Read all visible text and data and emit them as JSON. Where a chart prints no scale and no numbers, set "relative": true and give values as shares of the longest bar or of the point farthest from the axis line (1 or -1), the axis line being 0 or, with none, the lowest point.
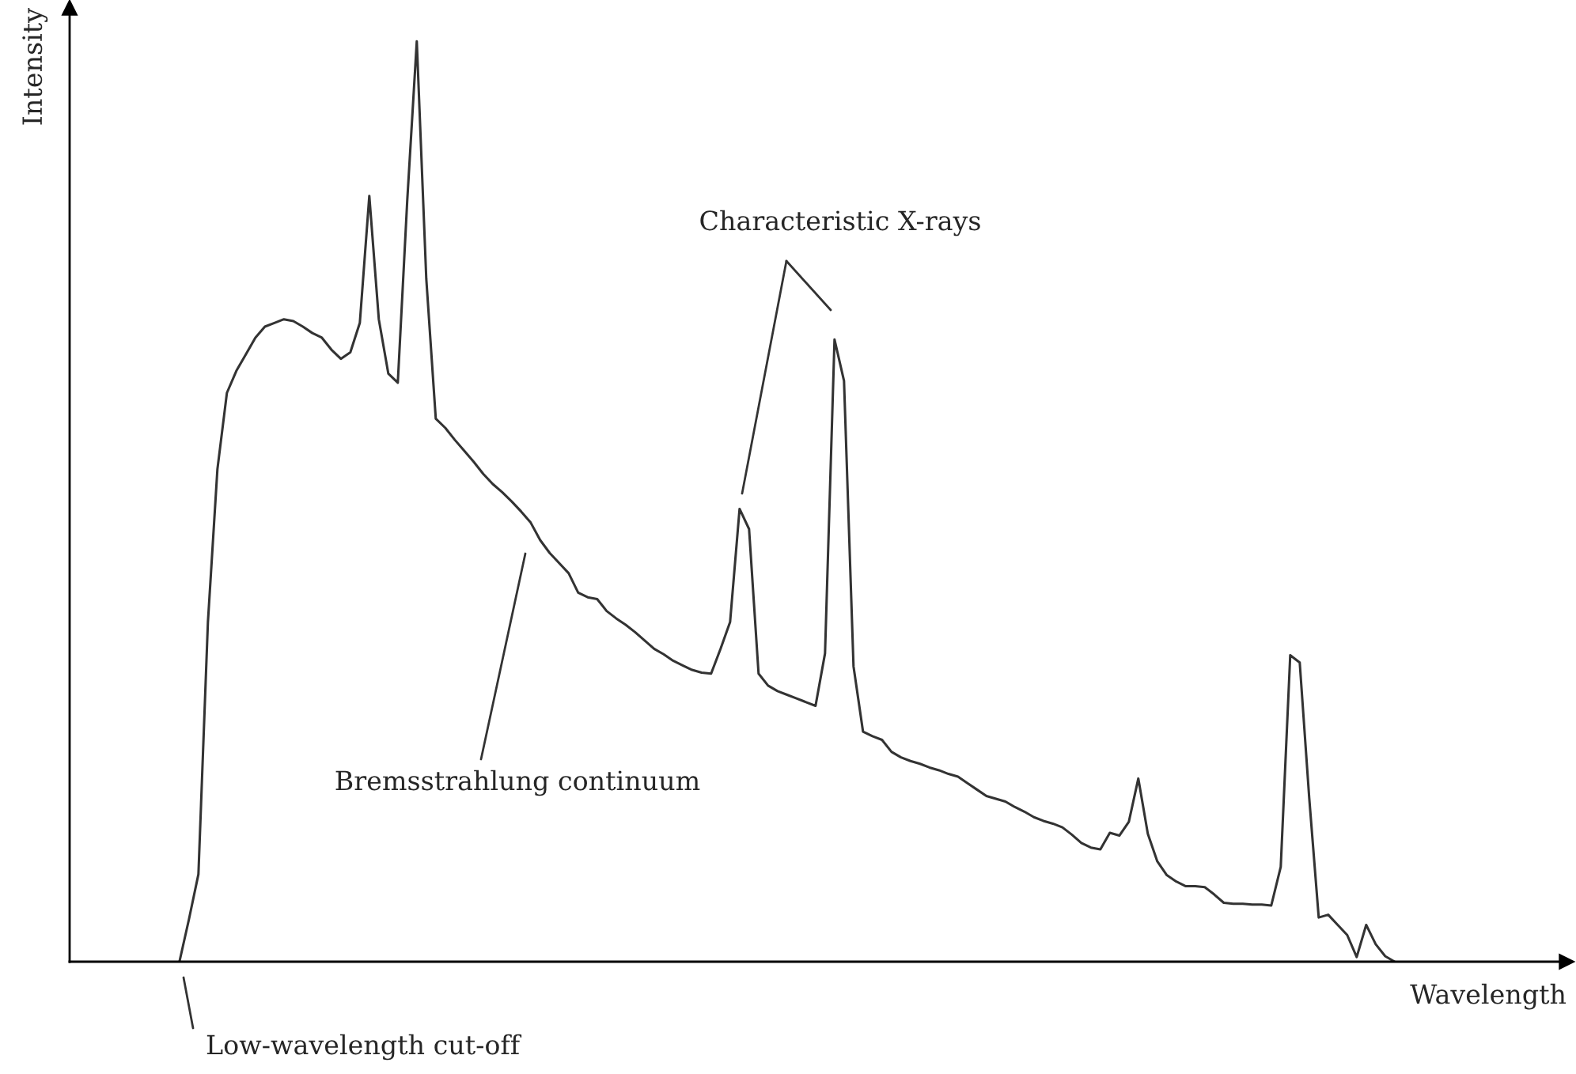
{
  "chart_data": {
    "type": "line",
    "relative": true,
    "xlabel": "Wavelength",
    "ylabel": "Intensity",
    "annotations": [
      "Characteristic X-rays",
      "Bremsstrahlung continuum",
      "Low-wavelength cut-off"
    ],
    "categories": [
      null,
      null,
      null,
      null,
      null,
      null,
      null,
      null,
      null,
      null,
      null,
      null,
      null,
      null,
      null,
      null,
      null,
      null,
      null,
      null,
      null,
      null,
      null,
      null,
      null,
      null,
      null,
      null,
      null,
      null,
      null,
      null,
      null,
      null,
      null,
      null,
      null,
      null,
      null,
      null,
      null,
      null,
      null,
      null,
      null,
      null,
      null,
      null,
      null,
      null,
      null,
      null,
      null,
      null,
      null,
      null,
      null,
      null,
      null,
      null,
      null,
      null,
      null,
      null,
      null,
      null,
      null,
      null,
      null,
      null,
      null,
      null,
      null,
      null,
      null,
      null,
      null,
      null,
      null,
      null,
      null,
      null,
      null,
      null,
      null,
      null,
      null,
      null,
      null,
      null,
      null,
      null,
      null,
      null,
      null,
      null,
      null,
      null,
      null,
      null,
      null,
      null,
      null,
      null,
      null,
      null,
      null,
      null,
      null,
      null,
      null,
      null,
      null,
      null,
      null,
      null,
      null,
      null,
      null,
      null,
      null,
      null,
      null,
      null,
      null,
      null,
      null,
      null,
      null
    ],
    "series": [
      {
        "color": "#333333",
        "values": [
          0,
          0.046,
          0.095,
          0.369,
          0.535,
          0.618,
          0.642,
          0.66,
          0.678,
          0.69,
          0.694,
          0.698,
          0.696,
          0.69,
          0.683,
          0.678,
          0.665,
          0.655,
          0.662,
          0.694,
          0.832,
          0.698,
          0.639,
          0.629,
          0.828,
          1,
          0.742,
          0.59,
          0.58,
          0.567,
          0.555,
          0.543,
          0.53,
          0.519,
          0.51,
          0.5,
          0.489,
          0.477,
          0.458,
          0.444,
          0.433,
          0.422,
          0.401,
          0.396,
          0.394,
          0.381,
          0.373,
          0.366,
          0.358,
          0.349,
          0.34,
          0.334,
          0.327,
          0.322,
          0.317,
          0.314,
          0.313,
          0.34,
          0.369,
          0.492,
          0.47,
          0.313,
          0.3,
          0.294,
          0.29,
          0.286,
          0.282,
          0.278,
          0.335,
          0.676,
          0.631,
          0.321,
          0.25,
          0.245,
          0.241,
          0.228,
          0.222,
          0.218,
          0.215,
          0.211,
          0.208,
          0.204,
          0.201,
          0.194,
          0.187,
          0.18,
          0.177,
          0.174,
          0.168,
          0.163,
          0.157,
          0.153,
          0.15,
          0.146,
          0.138,
          0.129,
          0.124,
          0.122,
          0.14,
          0.137,
          0.152,
          0.199,
          0.139,
          0.109,
          0.094,
          0.087,
          0.082,
          0.082,
          0.081,
          0.073,
          0.064,
          0.063,
          0.063,
          0.062,
          0.062,
          0.061,
          0.103,
          0.333,
          0.325,
          0.178,
          0.048,
          0.051,
          0.04,
          0.029,
          0.005,
          0.04,
          0.019,
          0.006,
          0
        ]
      }
    ]
  }
}
